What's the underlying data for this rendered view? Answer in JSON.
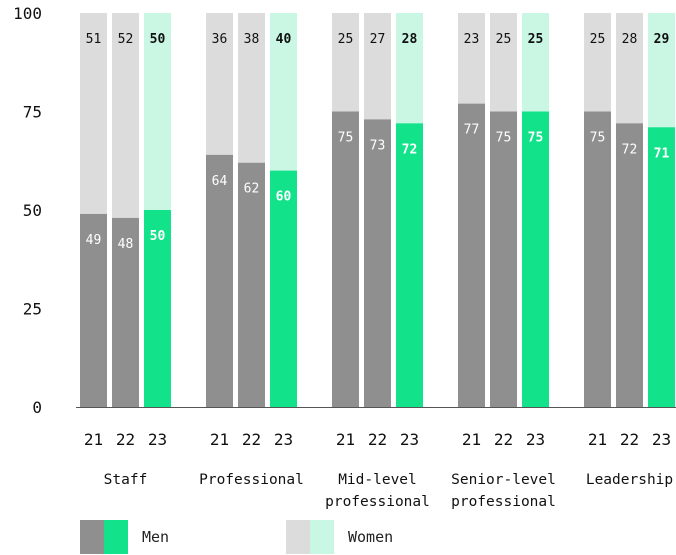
{
  "chart_data": {
    "type": "bar",
    "stacked": true,
    "ylim": [
      0,
      100
    ],
    "yticks": [
      "0",
      "25",
      "50",
      "75",
      "100"
    ],
    "groups": [
      {
        "label": [
          "Staff"
        ],
        "years": [
          "21",
          "22",
          "23"
        ],
        "men": [
          49,
          48,
          50
        ],
        "women": [
          51,
          52,
          50
        ]
      },
      {
        "label": [
          "Professional"
        ],
        "years": [
          "21",
          "22",
          "23"
        ],
        "men": [
          64,
          62,
          60
        ],
        "women": [
          36,
          38,
          40
        ]
      },
      {
        "label": [
          "Mid-level",
          "professional"
        ],
        "years": [
          "21",
          "22",
          "23"
        ],
        "men": [
          75,
          73,
          72
        ],
        "women": [
          25,
          27,
          28
        ]
      },
      {
        "label": [
          "Senior-level",
          "professional"
        ],
        "years": [
          "21",
          "22",
          "23"
        ],
        "men": [
          77,
          75,
          75
        ],
        "women": [
          23,
          25,
          25
        ]
      },
      {
        "label": [
          "Leadership"
        ],
        "years": [
          "21",
          "22",
          "23"
        ],
        "men": [
          75,
          72,
          71
        ],
        "women": [
          25,
          28,
          29
        ]
      }
    ],
    "series": [
      {
        "name": "Men",
        "past_color": "#8f8f8f",
        "current_color": "#12e28a"
      },
      {
        "name": "Women",
        "past_color": "#dcdcdc",
        "current_color": "#c9f7e3"
      }
    ]
  },
  "legend": {
    "men_label": "Men",
    "women_label": "Women"
  }
}
